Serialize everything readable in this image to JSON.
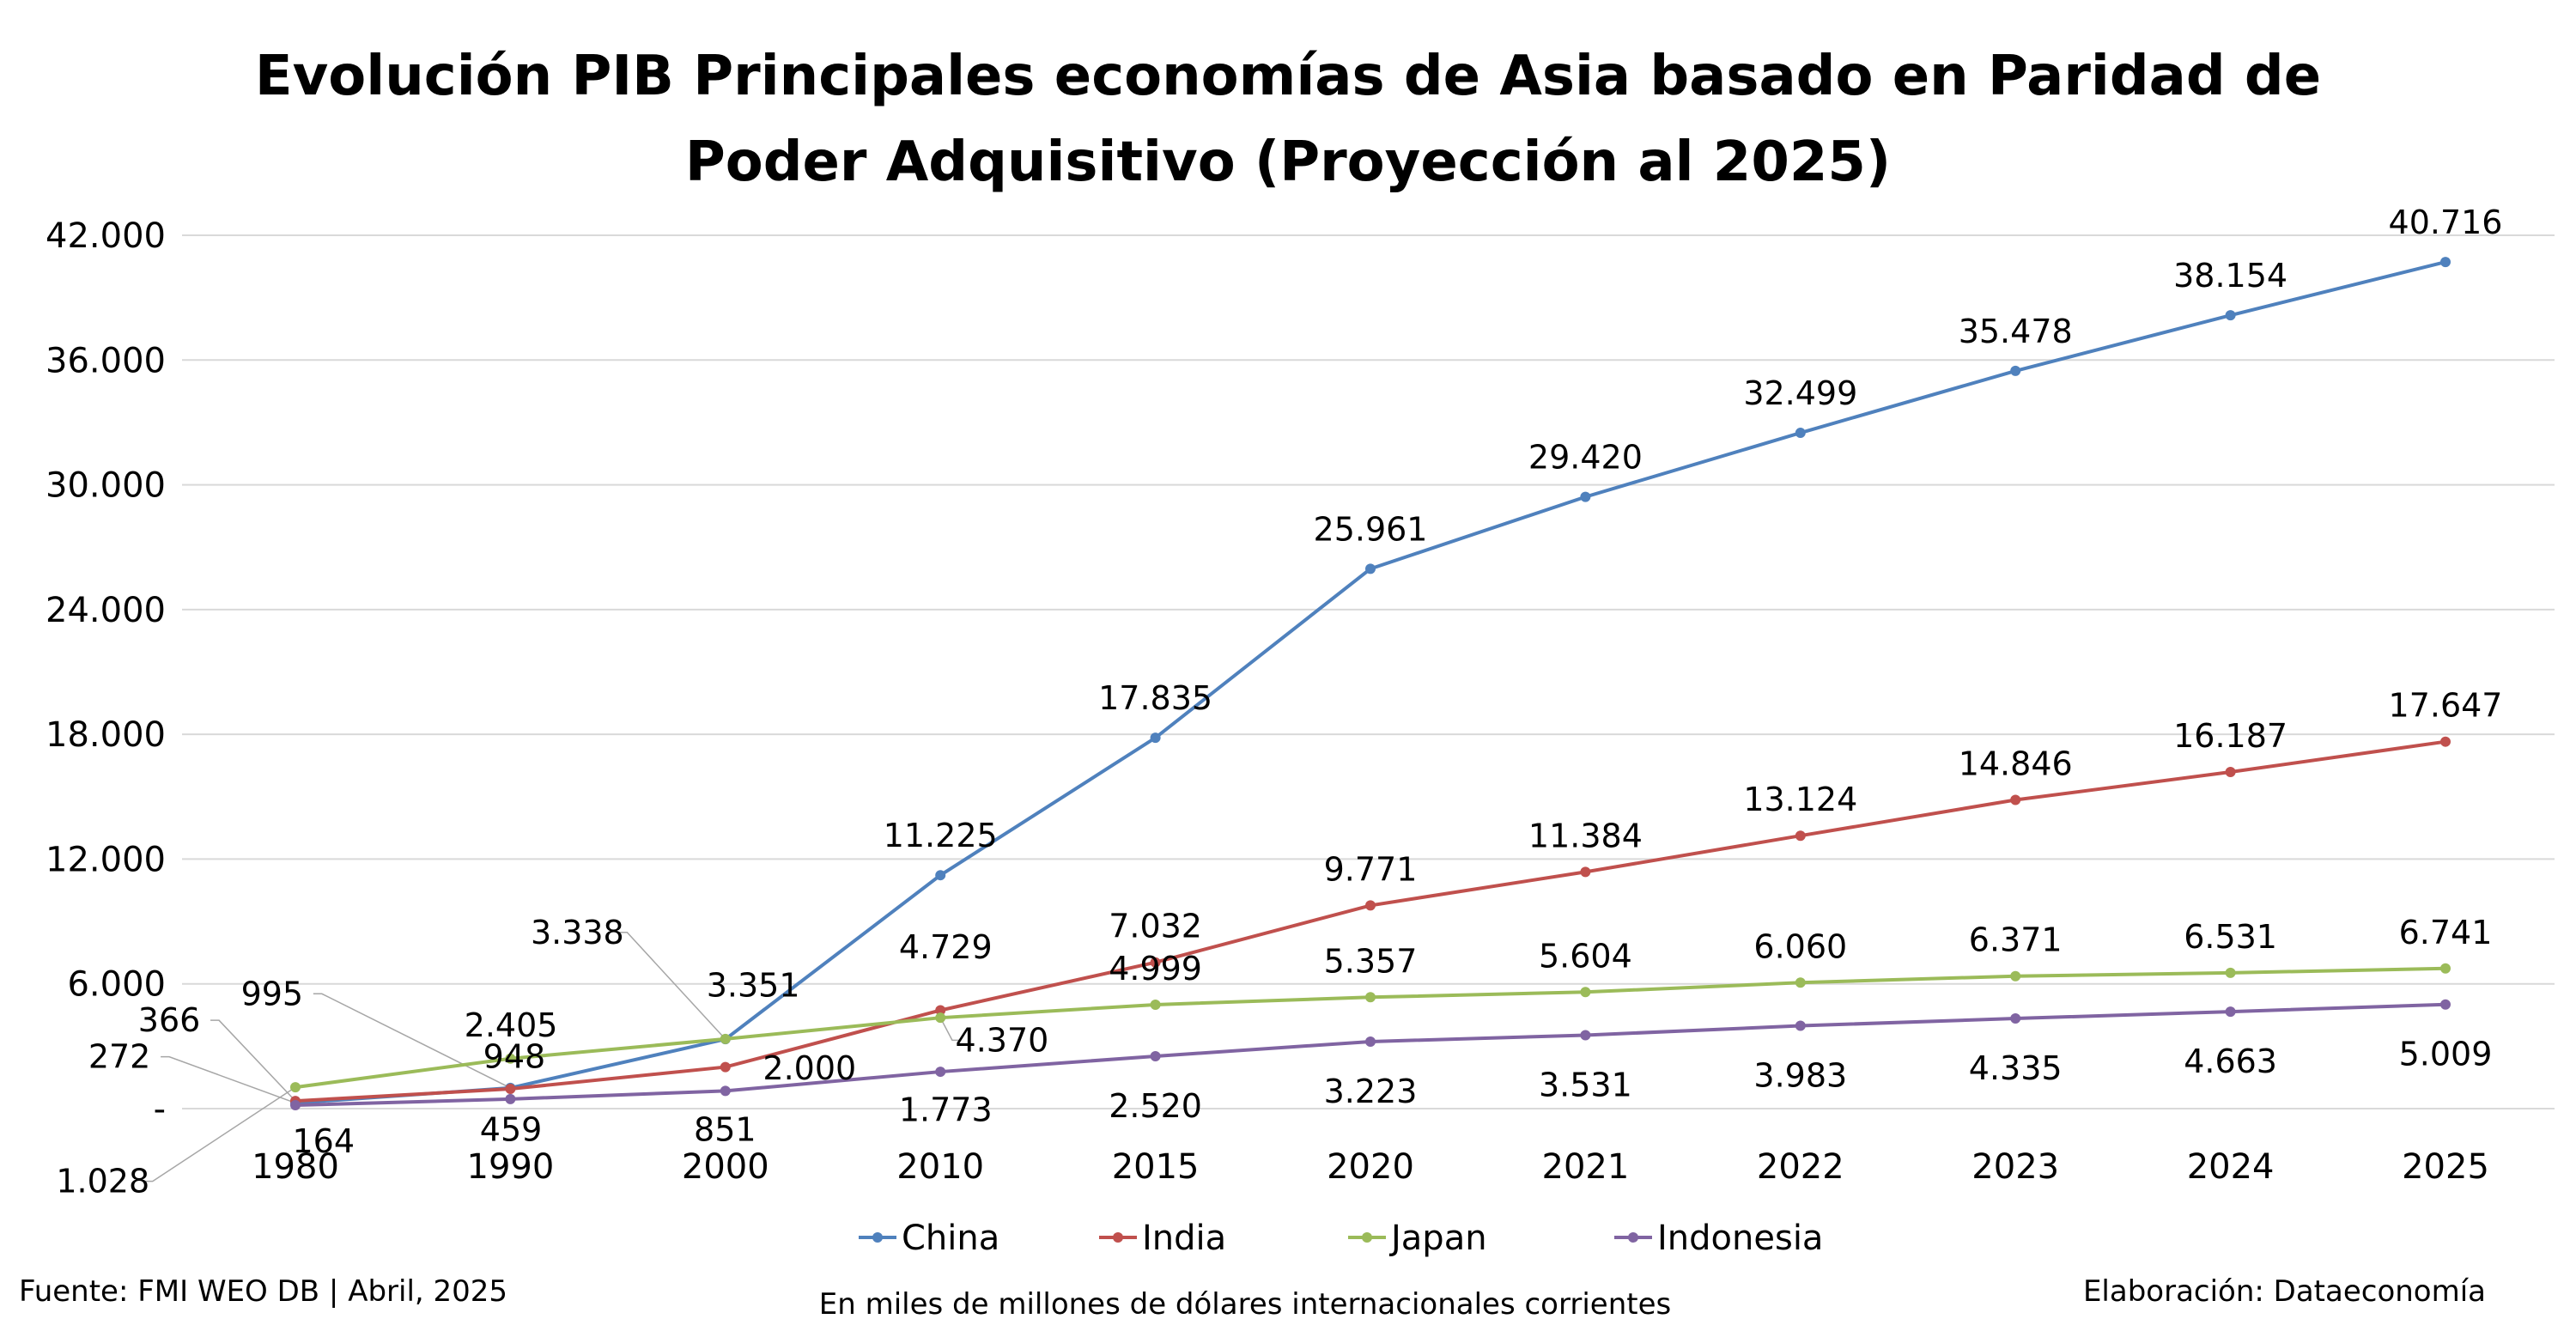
{
  "chart_data": {
    "type": "line",
    "title": "Evolución PIB Principales economías de Asia basado en Paridad de Poder Adquisitivo (Proyección al 2025)",
    "title_lines": [
      "Evolución PIB Principales economías de Asia basado en Paridad de",
      "Poder Adquisitivo (Proyección al 2025)"
    ],
    "xlabel": "",
    "ylabel": "",
    "categories": [
      "1980",
      "1990",
      "2000",
      "2010",
      "2015",
      "2020",
      "2021",
      "2022",
      "2023",
      "2024",
      "2025"
    ],
    "ylim": [
      0,
      42000
    ],
    "yticks": [
      0,
      6000,
      12000,
      18000,
      24000,
      30000,
      36000,
      42000
    ],
    "ytick_labels": [
      "-",
      "6.000",
      "12.000",
      "18.000",
      "24.000",
      "30.000",
      "36.000",
      "42.000"
    ],
    "grid": true,
    "legend_position": "bottom",
    "series": [
      {
        "name": "China",
        "color": "#4f81bd",
        "values": [
          272,
          995,
          3338,
          11225,
          17835,
          25961,
          29420,
          32499,
          35478,
          38154,
          40716
        ]
      },
      {
        "name": "India",
        "color": "#c0504d",
        "values": [
          366,
          948,
          2000,
          4729,
          7032,
          9771,
          11384,
          13124,
          14846,
          16187,
          17647
        ]
      },
      {
        "name": "Japan",
        "color": "#9bbb59",
        "values": [
          1028,
          2405,
          3351,
          4370,
          4999,
          5357,
          5604,
          6060,
          6371,
          6531,
          6741
        ]
      },
      {
        "name": "Indonesia",
        "color": "#8064a2",
        "values": [
          164,
          459,
          851,
          1773,
          2520,
          3223,
          3531,
          3983,
          4335,
          4663,
          5009
        ]
      }
    ]
  },
  "footer": {
    "source": "Fuente: FMI WEO DB | Abril, 2025",
    "units": "En miles de millones de dólares internacionales corrientes",
    "credit": "Elaboración: Dataeconomía"
  }
}
